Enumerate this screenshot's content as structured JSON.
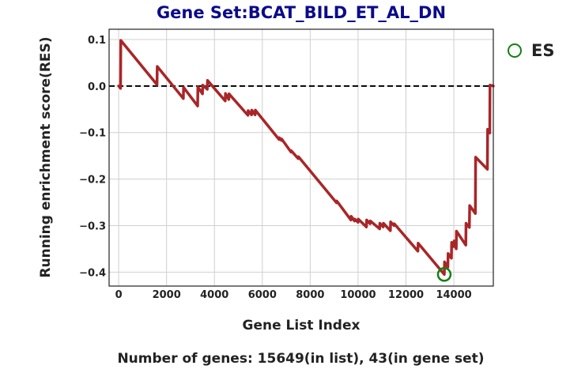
{
  "chart_data": {
    "type": "line",
    "title": "Gene Set:BCAT_BILD_ET_AL_DN",
    "xlabel": "Gene List Index",
    "ylabel": "Running enrichment score(RES)",
    "footer": "Number of genes: 15649(in list), 43(in gene set)",
    "xlim": [
      -400,
      15649
    ],
    "ylim": [
      -0.43,
      0.122
    ],
    "xticks": [
      0,
      2000,
      4000,
      6000,
      8000,
      10000,
      12000,
      14000
    ],
    "yticks": [
      0.1,
      0.0,
      -0.1,
      -0.2,
      -0.3,
      -0.4
    ],
    "xtick_labels": [
      "0",
      "2000",
      "4000",
      "6000",
      "8000",
      "10000",
      "12000",
      "14000"
    ],
    "ytick_labels": [
      "0.1",
      "0.0",
      "−0.1",
      "−0.2",
      "−0.3",
      "−0.4"
    ],
    "grid": true,
    "zero_line": 0.0,
    "legend": {
      "position": "outside-right",
      "entries": [
        "ES"
      ]
    },
    "es_point": {
      "x": 13600,
      "y": -0.405
    },
    "colors": {
      "line": "#a82628",
      "marker": "#128012",
      "title": "#0b0b8a",
      "zero_line": "#000000"
    },
    "series": [
      {
        "x": [
          0,
          80,
          90,
          1600,
          1610,
          2700,
          2710,
          3300,
          3310,
          3500,
          3510,
          3700,
          3710,
          4450,
          4460,
          4600,
          4610,
          5400,
          5410,
          5550,
          5560,
          5700,
          5710,
          6700,
          6710,
          6800,
          6810,
          7200,
          7210,
          7500,
          7510,
          9100,
          9110,
          9700,
          9710,
          9850,
          9860,
          10000,
          10010,
          10350,
          10360,
          10500,
          10510,
          10900,
          10910,
          11050,
          11060,
          11350,
          11360,
          11500,
          11510,
          12500,
          12510,
          13600,
          13610,
          13750,
          13760,
          13900,
          13910,
          14000,
          14010,
          14100,
          14110,
          14500,
          14510,
          14650,
          14660,
          14900,
          14910,
          15400,
          15410,
          15500,
          15510,
          15649
        ],
        "y": [
          0.0,
          -0.005,
          0.098,
          0.003,
          0.042,
          -0.027,
          -0.003,
          -0.043,
          -0.002,
          -0.017,
          0.002,
          -0.007,
          0.012,
          -0.032,
          -0.016,
          -0.029,
          -0.017,
          -0.063,
          -0.053,
          -0.062,
          -0.052,
          -0.062,
          -0.052,
          -0.115,
          -0.111,
          -0.117,
          -0.114,
          -0.142,
          -0.139,
          -0.156,
          -0.152,
          -0.251,
          -0.247,
          -0.288,
          -0.28,
          -0.29,
          -0.286,
          -0.293,
          -0.286,
          -0.303,
          -0.288,
          -0.296,
          -0.29,
          -0.307,
          -0.295,
          -0.303,
          -0.295,
          -0.311,
          -0.292,
          -0.3,
          -0.296,
          -0.355,
          -0.338,
          -0.405,
          -0.378,
          -0.39,
          -0.36,
          -0.37,
          -0.336,
          -0.345,
          -0.333,
          -0.35,
          -0.312,
          -0.342,
          -0.295,
          -0.304,
          -0.257,
          -0.274,
          -0.153,
          -0.179,
          -0.093,
          -0.101,
          0.002,
          0.0
        ]
      }
    ]
  }
}
